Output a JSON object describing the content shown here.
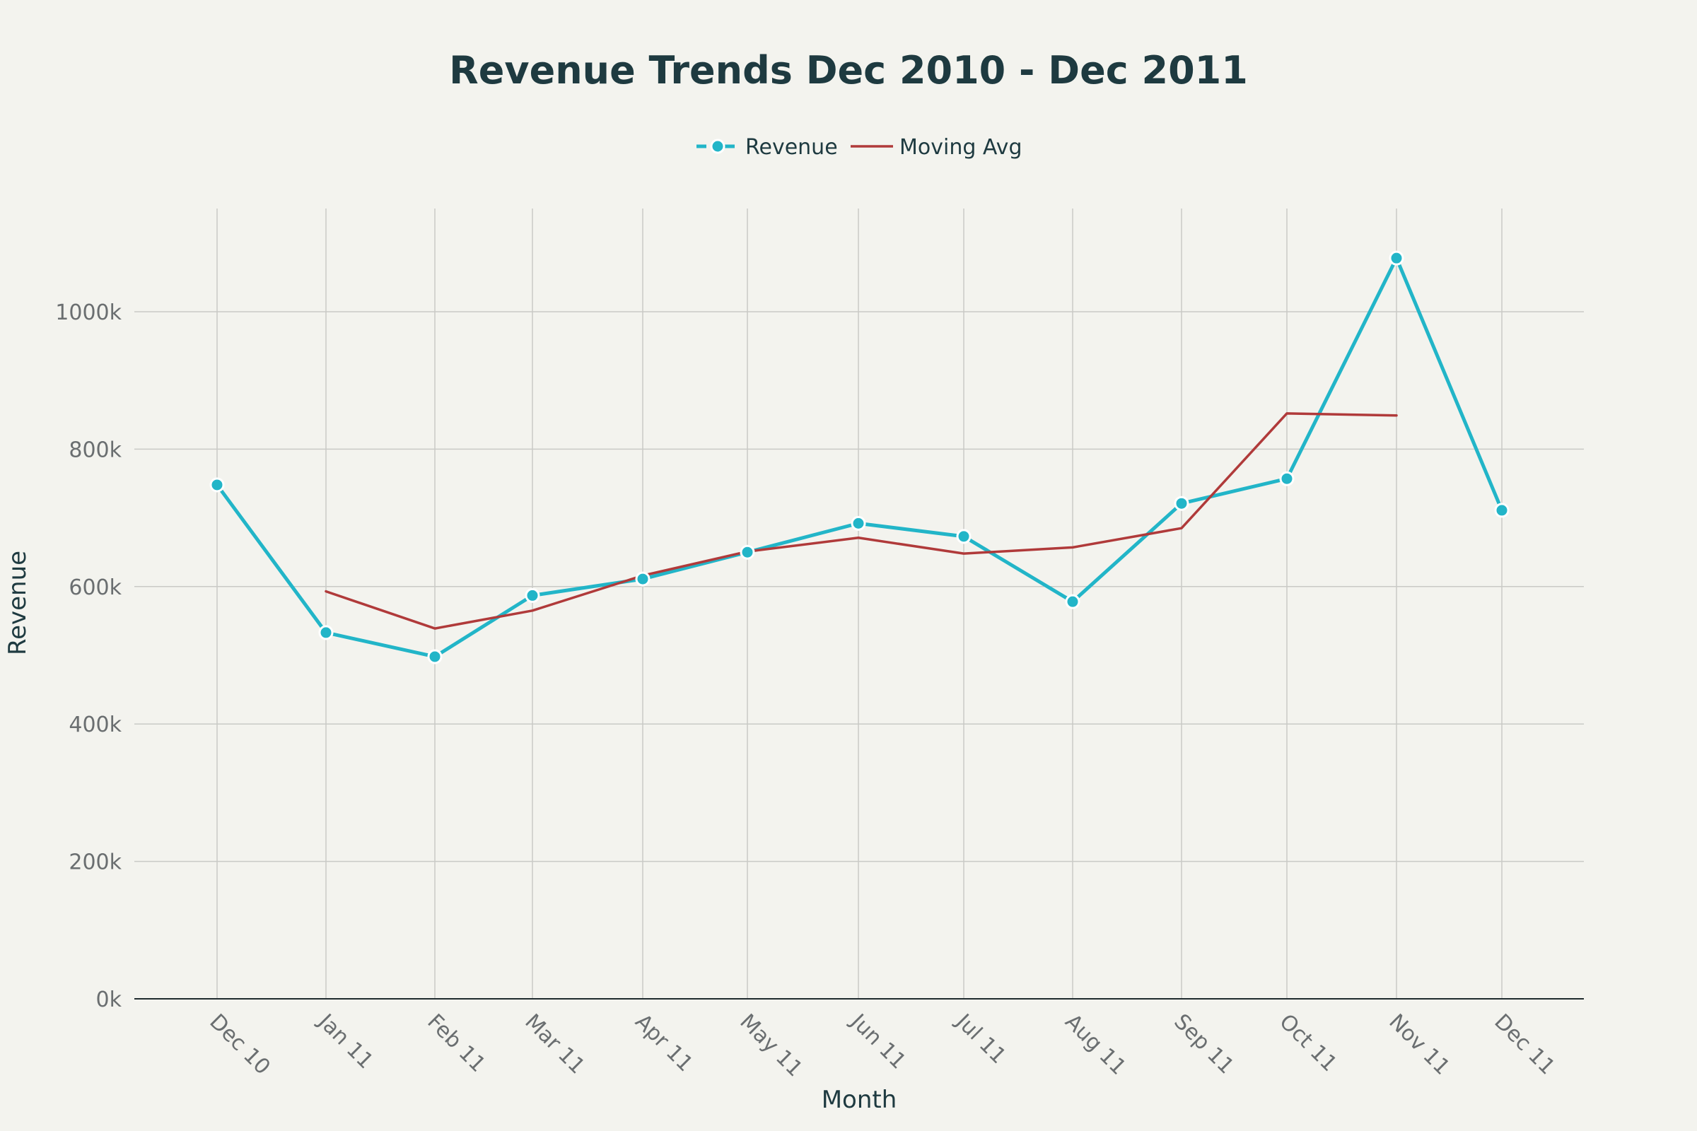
{
  "chart_data": {
    "type": "line",
    "title": "Revenue Trends Dec 2010 - Dec 2011",
    "xlabel": "Month",
    "ylabel": "Revenue",
    "categories": [
      "Dec 10",
      "Jan 11",
      "Feb 11",
      "Mar 11",
      "Apr 11",
      "May 11",
      "Jun 11",
      "Jul 11",
      "Aug 11",
      "Sep 11",
      "Oct 11",
      "Nov 11",
      "Dec 11"
    ],
    "ylim": [
      0,
      1150000
    ],
    "yticks": [
      0,
      200000,
      400000,
      600000,
      800000,
      1000000
    ],
    "ytick_labels": [
      "0k",
      "200k",
      "400k",
      "600k",
      "800k",
      "1000k"
    ],
    "grid": true,
    "legend_position": "top-center",
    "series": [
      {
        "name": "Revenue",
        "color": "#22b5c8",
        "markers": true,
        "values": [
          748000,
          533000,
          498000,
          587000,
          611000,
          650000,
          692000,
          673000,
          578000,
          721000,
          757000,
          1078000,
          711000
        ]
      },
      {
        "name": "Moving Avg",
        "color": "#b03a3a",
        "markers": false,
        "values": [
          null,
          593000,
          539000,
          565000,
          616000,
          651000,
          671000,
          648000,
          657000,
          685000,
          852000,
          849000,
          null
        ]
      }
    ]
  }
}
